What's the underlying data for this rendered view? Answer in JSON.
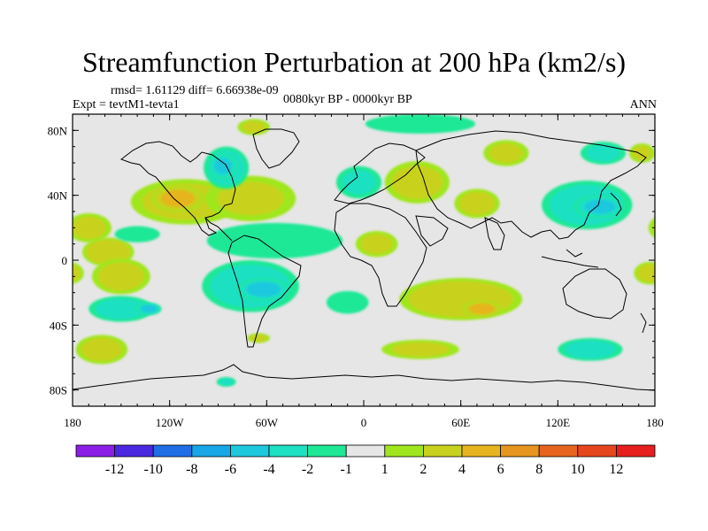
{
  "chart_data": {
    "type": "heatmap",
    "title": "Streamfunction Perturbation at 200 hPa (km2/s)",
    "stats": "rmsd= 1.61129 diff= 6.66938e-09",
    "experiment": "Expt = tevtM1-tevta1",
    "period": "0080kyr BP - 0000kyr BP",
    "season": "ANN",
    "x_range": [
      -180,
      180
    ],
    "y_range": [
      -90,
      90
    ],
    "x_ticks": [
      {
        "value": -180,
        "label": "180"
      },
      {
        "value": -120,
        "label": "120W"
      },
      {
        "value": -60,
        "label": "60W"
      },
      {
        "value": 0,
        "label": "0"
      },
      {
        "value": 60,
        "label": "60E"
      },
      {
        "value": 120,
        "label": "120E"
      },
      {
        "value": 180,
        "label": "180"
      }
    ],
    "y_ticks": [
      {
        "value": 80,
        "label": "80N"
      },
      {
        "value": 40,
        "label": "40N"
      },
      {
        "value": 0,
        "label": "0"
      },
      {
        "value": -40,
        "label": "40S"
      },
      {
        "value": -80,
        "label": "80S"
      }
    ],
    "colorbar": {
      "labels": [
        "-12",
        "-10",
        "-8",
        "-6",
        "-4",
        "-2",
        "-1",
        "1",
        "2",
        "4",
        "6",
        "8",
        "10",
        "12"
      ],
      "colors": [
        "#8c1ee8",
        "#4a28e0",
        "#1f6ee6",
        "#17a6e6",
        "#1ec8de",
        "#1ee0c2",
        "#1ee896",
        "#e6e6e6",
        "#a0e61e",
        "#c8d21e",
        "#e6b41e",
        "#e6961e",
        "#e6641e",
        "#e6461e",
        "#e61e1e"
      ]
    },
    "anomalies": [
      {
        "lon": -170,
        "lat": 20,
        "rlon": 14,
        "rlat": 9,
        "value": 2.2
      },
      {
        "lon": -158,
        "lat": 5,
        "rlon": 16,
        "rlat": 9,
        "value": 3.5
      },
      {
        "lon": -150,
        "lat": -10,
        "rlon": 18,
        "rlat": 11,
        "value": 2.5
      },
      {
        "lon": -162,
        "lat": -55,
        "rlon": 16,
        "rlat": 9,
        "value": 2.5
      },
      {
        "lon": -150,
        "lat": -30,
        "rlon": 20,
        "rlat": 8,
        "value": -2.5
      },
      {
        "lon": -133,
        "lat": -30,
        "rlon": 8,
        "rlat": 4,
        "value": -4.5
      },
      {
        "lon": -140,
        "lat": 16,
        "rlon": 14,
        "rlat": 5,
        "value": -1.5
      },
      {
        "lon": -110,
        "lat": 36,
        "rlon": 34,
        "rlat": 14,
        "value": 2.5
      },
      {
        "lon": -115,
        "lat": 38,
        "rlon": 16,
        "rlat": 8,
        "value": 5.0
      },
      {
        "lon": -70,
        "lat": 38,
        "rlon": 28,
        "rlat": 14,
        "value": 2.0
      },
      {
        "lon": -85,
        "lat": 57,
        "rlon": 14,
        "rlat": 13,
        "value": -3.0
      },
      {
        "lon": -87,
        "lat": 58,
        "rlon": 9,
        "rlat": 8,
        "value": -4.5
      },
      {
        "lon": -68,
        "lat": 82,
        "rlon": 10,
        "rlat": 5,
        "value": 2.0
      },
      {
        "lon": -55,
        "lat": 12,
        "rlon": 42,
        "rlat": 11,
        "value": -1.5
      },
      {
        "lon": -70,
        "lat": -16,
        "rlon": 30,
        "rlat": 16,
        "value": -3.0
      },
      {
        "lon": -62,
        "lat": -18,
        "rlon": 16,
        "rlat": 7,
        "value": -5.0
      },
      {
        "lon": -10,
        "lat": -26,
        "rlon": 13,
        "rlat": 7,
        "value": -1.5
      },
      {
        "lon": -65,
        "lat": -48,
        "rlon": 7,
        "rlat": 3,
        "value": 2.0
      },
      {
        "lon": -85,
        "lat": -75,
        "rlon": 6,
        "rlat": 3,
        "value": -2.0
      },
      {
        "lon": 35,
        "lat": 84,
        "rlon": 34,
        "rlat": 6,
        "value": -1.5
      },
      {
        "lon": 8,
        "lat": 10,
        "rlon": 13,
        "rlat": 8,
        "value": 2.2
      },
      {
        "lon": -3,
        "lat": 48,
        "rlon": 14,
        "rlat": 10,
        "value": -2.0
      },
      {
        "lon": 33,
        "lat": 48,
        "rlon": 20,
        "rlat": 13,
        "value": 2.5
      },
      {
        "lon": 88,
        "lat": 66,
        "rlon": 14,
        "rlat": 8,
        "value": 2.0
      },
      {
        "lon": 70,
        "lat": 35,
        "rlon": 14,
        "rlat": 9,
        "value": 2.5
      },
      {
        "lon": 138,
        "lat": 34,
        "rlon": 28,
        "rlat": 15,
        "value": -3.0
      },
      {
        "lon": 146,
        "lat": 33,
        "rlon": 16,
        "rlat": 7,
        "value": -4.5
      },
      {
        "lon": 148,
        "lat": 66,
        "rlon": 14,
        "rlat": 7,
        "value": -2.0
      },
      {
        "lon": 172,
        "lat": 66,
        "rlon": 8,
        "rlat": 6,
        "value": 2.0
      },
      {
        "lon": 60,
        "lat": -24,
        "rlon": 38,
        "rlat": 13,
        "value": 3.5
      },
      {
        "lon": 73,
        "lat": -30,
        "rlon": 12,
        "rlat": 5,
        "value": 5.0
      },
      {
        "lon": 140,
        "lat": -55,
        "rlon": 20,
        "rlat": 7,
        "value": -2.5
      },
      {
        "lon": 177,
        "lat": -8,
        "rlon": 10,
        "rlat": 7,
        "value": 2.5
      },
      {
        "lon": 35,
        "lat": -55,
        "rlon": 24,
        "rlat": 6,
        "value": 2.0
      }
    ]
  }
}
